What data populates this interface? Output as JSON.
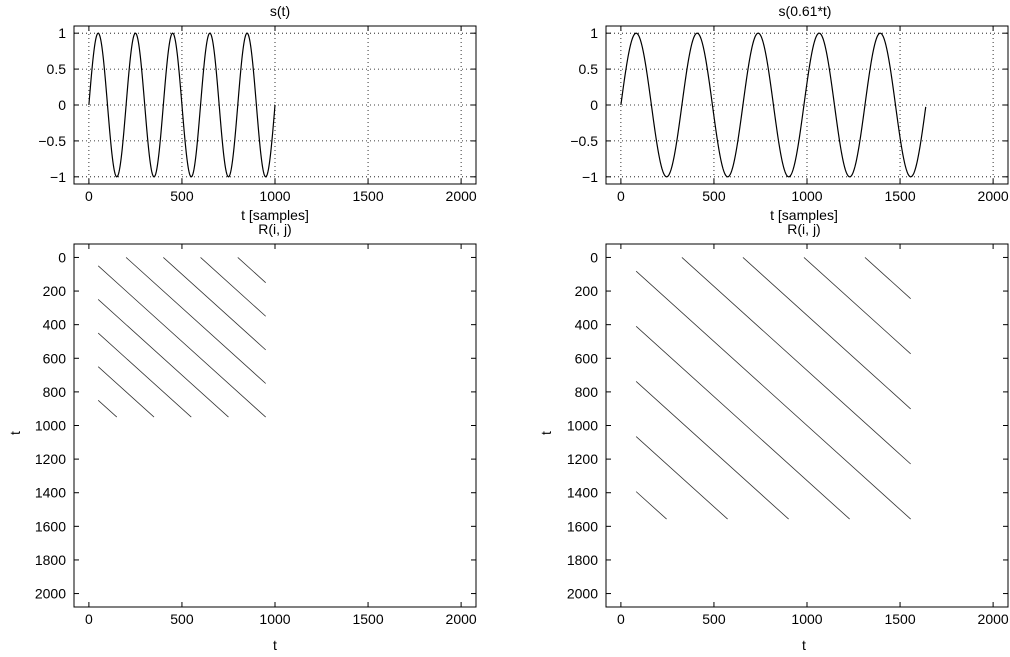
{
  "chart_data": [
    {
      "id": "p1",
      "type": "line",
      "title": "s(t)",
      "xlabel": "t [samples]",
      "ylabel": "",
      "xlim": [
        -80,
        2080
      ],
      "ylim": [
        -1.1,
        1.1
      ],
      "xticks": [
        0,
        500,
        1000,
        1500,
        2000
      ],
      "xtick_labels": [
        "0",
        "500",
        "1000",
        "1500",
        "2000"
      ],
      "yticks": [
        1,
        0.5,
        0,
        -0.5,
        -1
      ],
      "ytick_labels": [
        "1",
        "0.5",
        "0",
        "−0.5",
        "−1"
      ],
      "grid": true,
      "series": [
        {
          "function": "sine",
          "amplitude": 1,
          "period": 200,
          "x_start": 0,
          "x_end": 1000
        }
      ]
    },
    {
      "id": "p2",
      "type": "line",
      "title": "s(0.61*t)",
      "xlabel": "t [samples]",
      "ylabel": "",
      "xlim": [
        -80,
        2080
      ],
      "ylim": [
        -1.1,
        1.1
      ],
      "xticks": [
        0,
        500,
        1000,
        1500,
        2000
      ],
      "xtick_labels": [
        "0",
        "500",
        "1000",
        "1500",
        "2000"
      ],
      "yticks": [
        1,
        0.5,
        0,
        -0.5,
        -1
      ],
      "ytick_labels": [
        "1",
        "0.5",
        "0",
        "−0.5",
        "−1"
      ],
      "grid": true,
      "series": [
        {
          "function": "sine",
          "amplitude": 1,
          "period": 327.87,
          "x_start": 0,
          "x_end": 1639
        }
      ]
    },
    {
      "id": "p3",
      "type": "scatter",
      "title": "R(i, j)",
      "xlabel": "t",
      "ylabel": "t",
      "xlim": [
        -80,
        2080
      ],
      "ylim": [
        2080,
        -80
      ],
      "xticks": [
        0,
        500,
        1000,
        1500,
        2000
      ],
      "xtick_labels": [
        "0",
        "500",
        "1000",
        "1500",
        "2000"
      ],
      "yticks": [
        0,
        200,
        400,
        600,
        800,
        1000,
        1200,
        1400,
        1600,
        1800,
        2000
      ],
      "ytick_labels": [
        "0",
        "200",
        "400",
        "600",
        "800",
        "1000",
        "1200",
        "1400",
        "1600",
        "1800",
        "2000"
      ],
      "grid": false,
      "diagonal_lines": {
        "period": 200,
        "extent": 1000,
        "trim": 50
      }
    },
    {
      "id": "p4",
      "type": "scatter",
      "title": "R(i, j)",
      "xlabel": "t",
      "ylabel": "t",
      "xlim": [
        -80,
        2080
      ],
      "ylim": [
        2080,
        -80
      ],
      "xticks": [
        0,
        500,
        1000,
        1500,
        2000
      ],
      "xtick_labels": [
        "0",
        "500",
        "1000",
        "1500",
        "2000"
      ],
      "yticks": [
        0,
        200,
        400,
        600,
        800,
        1000,
        1200,
        1400,
        1600,
        1800,
        2000
      ],
      "ytick_labels": [
        "0",
        "200",
        "400",
        "600",
        "800",
        "1000",
        "1200",
        "1400",
        "1600",
        "1800",
        "2000"
      ],
      "grid": false,
      "diagonal_lines": {
        "period": 327.87,
        "extent": 1639,
        "trim": 82
      }
    }
  ]
}
